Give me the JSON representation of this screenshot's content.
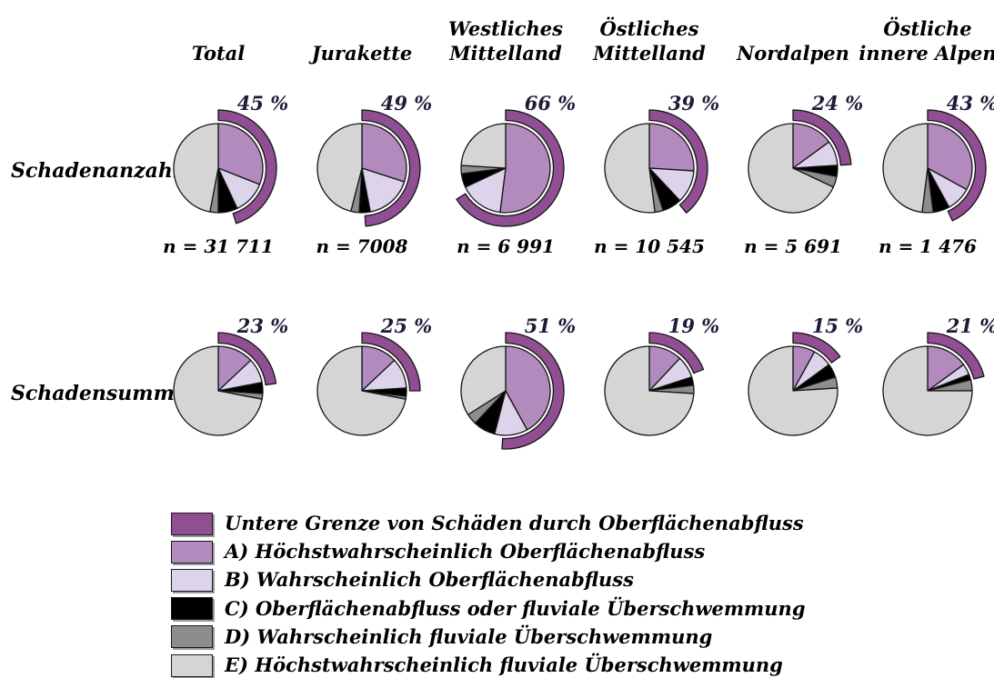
{
  "figure": {
    "row_labels": [
      "Schadenanzahl",
      "Schadensumme"
    ],
    "columns": [
      [
        "Total"
      ],
      [
        "Jurakette"
      ],
      [
        "Westliches",
        "Mittelland"
      ],
      [
        "Östliches",
        "Mittelland"
      ],
      [
        "Nordalpen"
      ],
      [
        "Östliche",
        "innere Alpen"
      ]
    ]
  },
  "legend": {
    "items": [
      {
        "key": "lower_bound",
        "label": "Untere Grenze von Schäden durch Oberflächenabfluss",
        "color": "#8f4f92"
      },
      {
        "key": "A",
        "label": "A) Höchstwahrscheinlich Oberflächenabfluss",
        "color": "#b38abe"
      },
      {
        "key": "B",
        "label": "B) Wahrscheinlich Oberflächenabfluss",
        "color": "#ddd3ea"
      },
      {
        "key": "C",
        "label": "C) Oberflächenabfluss oder fluviale Überschwemmung",
        "color": "#000000"
      },
      {
        "key": "D",
        "label": "D) Wahrscheinlich fluviale Überschwemmung",
        "color": "#8d8d8d"
      },
      {
        "key": "E",
        "label": "E) Höchstwahrscheinlich fluviale Überschwemmung",
        "color": "#d5d5d5"
      }
    ]
  },
  "chart_data": {
    "type": "pie",
    "unit": "percent",
    "segment_order": [
      "A",
      "B",
      "C",
      "D",
      "E"
    ],
    "segment_colors": {
      "A": "#b38abe",
      "B": "#ddd3ea",
      "C": "#000000",
      "D": "#8d8d8d",
      "E": "#d5d5d5"
    },
    "outer_arc_color": "#8f4f92",
    "outer_arc_meaning": "Untere Grenze von Schäden durch Oberflächenabfluss",
    "rows": [
      {
        "label": "Schadenanzahl",
        "pies": [
          {
            "column": "Total",
            "outer_arc_percent": 45,
            "percent_label": "45 %",
            "n_label": "n = 31 711",
            "values": {
              "A": 31,
              "B": 12,
              "C": 7,
              "D": 3,
              "E": 47
            }
          },
          {
            "column": "Jurakette",
            "outer_arc_percent": 49,
            "percent_label": "49 %",
            "n_label": "n = 7008",
            "values": {
              "A": 30,
              "B": 17,
              "C": 4,
              "D": 3,
              "E": 46
            }
          },
          {
            "column": "Westliches Mittelland",
            "outer_arc_percent": 66,
            "percent_label": "66 %",
            "n_label": "n = 6 991",
            "values": {
              "A": 52,
              "B": 16,
              "C": 5,
              "D": 3,
              "E": 24
            }
          },
          {
            "column": "Östliches Mittelland",
            "outer_arc_percent": 39,
            "percent_label": "39 %",
            "n_label": "n = 10 545",
            "values": {
              "A": 26,
              "B": 12,
              "C": 7,
              "D": 3,
              "E": 52
            }
          },
          {
            "column": "Nordalpen",
            "outer_arc_percent": 24,
            "percent_label": "24 %",
            "n_label": "n = 5 691",
            "values": {
              "A": 15,
              "B": 9,
              "C": 4,
              "D": 4,
              "E": 68
            }
          },
          {
            "column": "Östliche innere Alpen",
            "outer_arc_percent": 43,
            "percent_label": "43 %",
            "n_label": "n = 1 476",
            "values": {
              "A": 33,
              "B": 9,
              "C": 6,
              "D": 4,
              "E": 48
            }
          }
        ]
      },
      {
        "label": "Schadensumme",
        "pies": [
          {
            "column": "Total",
            "outer_arc_percent": 23,
            "percent_label": "23 %",
            "n_label": "",
            "values": {
              "A": 13,
              "B": 9,
              "C": 4,
              "D": 2,
              "E": 72
            }
          },
          {
            "column": "Jurakette",
            "outer_arc_percent": 25,
            "percent_label": "25 %",
            "n_label": "",
            "values": {
              "A": 13,
              "B": 11,
              "C": 3,
              "D": 1,
              "E": 72
            }
          },
          {
            "column": "Westliches Mittelland",
            "outer_arc_percent": 51,
            "percent_label": "51 %",
            "n_label": "",
            "values": {
              "A": 42,
              "B": 12,
              "C": 8,
              "D": 4,
              "E": 34
            }
          },
          {
            "column": "Östliches Mittelland",
            "outer_arc_percent": 19,
            "percent_label": "19 %",
            "n_label": "",
            "values": {
              "A": 12,
              "B": 8,
              "C": 3,
              "D": 3,
              "E": 74
            }
          },
          {
            "column": "Nordalpen",
            "outer_arc_percent": 15,
            "percent_label": "15 %",
            "n_label": "",
            "values": {
              "A": 8,
              "B": 7,
              "C": 5,
              "D": 4,
              "E": 76
            }
          },
          {
            "column": "Östliche innere Alpen",
            "outer_arc_percent": 21,
            "percent_label": "21 %",
            "n_label": "",
            "values": {
              "A": 15,
              "B": 4,
              "C": 2,
              "D": 4,
              "E": 75
            }
          }
        ]
      }
    ]
  }
}
